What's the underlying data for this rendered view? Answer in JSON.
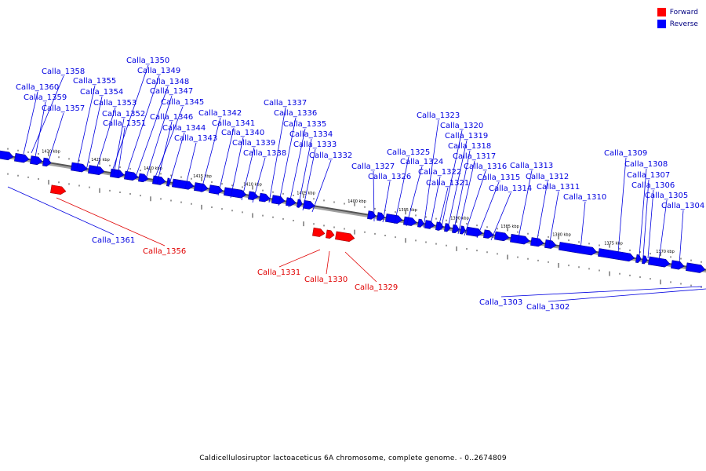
{
  "legend": {
    "forward": {
      "label": "Forward",
      "color": "#ff0000"
    },
    "reverse": {
      "label": "Reverse",
      "color": "#0000ff"
    }
  },
  "caption": "Caldicellulosiruptor lactoaceticus 6A chromosome, complete genome. - 0..2674809",
  "scale_labels": [
    "1430 kbp",
    "1425 kbp",
    "1420 kbp",
    "1415 kbp",
    "1410 kbp",
    "1405 kbp",
    "1400 kbp",
    "1395 kbp",
    "1390 kbp",
    "1385 kbp",
    "1380 kbp",
    "1375 kbp",
    "1370 kbp"
  ],
  "genes": [
    {
      "name": "Calla_1358",
      "strand": "reverse"
    },
    {
      "name": "Calla_1360",
      "strand": "reverse"
    },
    {
      "name": "Calla_1359",
      "strand": "reverse"
    },
    {
      "name": "Calla_1357",
      "strand": "reverse"
    },
    {
      "name": "Calla_1355",
      "strand": "reverse"
    },
    {
      "name": "Calla_1354",
      "strand": "reverse"
    },
    {
      "name": "Calla_1353",
      "strand": "reverse"
    },
    {
      "name": "Calla_1352",
      "strand": "reverse"
    },
    {
      "name": "Calla_1351",
      "strand": "reverse"
    },
    {
      "name": "Calla_1350",
      "strand": "reverse"
    },
    {
      "name": "Calla_1349",
      "strand": "reverse"
    },
    {
      "name": "Calla_1348",
      "strand": "reverse"
    },
    {
      "name": "Calla_1347",
      "strand": "reverse"
    },
    {
      "name": "Calla_1345",
      "strand": "reverse"
    },
    {
      "name": "Calla_1346",
      "strand": "reverse"
    },
    {
      "name": "Calla_1344",
      "strand": "reverse"
    },
    {
      "name": "Calla_1343",
      "strand": "reverse"
    },
    {
      "name": "Calla_1342",
      "strand": "reverse"
    },
    {
      "name": "Calla_1341",
      "strand": "reverse"
    },
    {
      "name": "Calla_1340",
      "strand": "reverse"
    },
    {
      "name": "Calla_1339",
      "strand": "reverse"
    },
    {
      "name": "Calla_1338",
      "strand": "reverse"
    },
    {
      "name": "Calla_1337",
      "strand": "reverse"
    },
    {
      "name": "Calla_1336",
      "strand": "reverse"
    },
    {
      "name": "Calla_1335",
      "strand": "reverse"
    },
    {
      "name": "Calla_1334",
      "strand": "reverse"
    },
    {
      "name": "Calla_1333",
      "strand": "reverse"
    },
    {
      "name": "Calla_1332",
      "strand": "reverse"
    },
    {
      "name": "Calla_1327",
      "strand": "reverse"
    },
    {
      "name": "Calla_1326",
      "strand": "reverse"
    },
    {
      "name": "Calla_1325",
      "strand": "reverse"
    },
    {
      "name": "Calla_1324",
      "strand": "reverse"
    },
    {
      "name": "Calla_1323",
      "strand": "reverse"
    },
    {
      "name": "Calla_1322",
      "strand": "reverse"
    },
    {
      "name": "Calla_1321",
      "strand": "reverse"
    },
    {
      "name": "Calla_1320",
      "strand": "reverse"
    },
    {
      "name": "Calla_1319",
      "strand": "reverse"
    },
    {
      "name": "Calla_1318",
      "strand": "reverse"
    },
    {
      "name": "Calla_1317",
      "strand": "reverse"
    },
    {
      "name": "Calla_1316",
      "strand": "reverse"
    },
    {
      "name": "Calla_1315",
      "strand": "reverse"
    },
    {
      "name": "Calla_1314",
      "strand": "reverse"
    },
    {
      "name": "Calla_1313",
      "strand": "reverse"
    },
    {
      "name": "Calla_1312",
      "strand": "reverse"
    },
    {
      "name": "Calla_1311",
      "strand": "reverse"
    },
    {
      "name": "Calla_1310",
      "strand": "reverse"
    },
    {
      "name": "Calla_1309",
      "strand": "reverse"
    },
    {
      "name": "Calla_1308",
      "strand": "reverse"
    },
    {
      "name": "Calla_1307",
      "strand": "reverse"
    },
    {
      "name": "Calla_1306",
      "strand": "reverse"
    },
    {
      "name": "Calla_1305",
      "strand": "reverse"
    },
    {
      "name": "Calla_1304",
      "strand": "reverse"
    },
    {
      "name": "Calla_1361",
      "strand": "reverse"
    },
    {
      "name": "Calla_1303",
      "strand": "reverse"
    },
    {
      "name": "Calla_1302",
      "strand": "reverse"
    },
    {
      "name": "Calla_1356",
      "strand": "forward"
    },
    {
      "name": "Calla_1331",
      "strand": "forward"
    },
    {
      "name": "Calla_1330",
      "strand": "forward"
    },
    {
      "name": "Calla_1329",
      "strand": "forward"
    }
  ]
}
